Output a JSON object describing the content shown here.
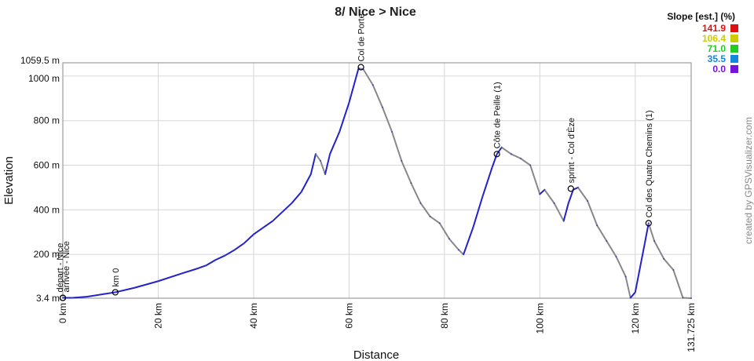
{
  "chart_data": {
    "type": "line",
    "title": "8/ Nice > Nice",
    "xlabel": "Distance",
    "ylabel": "Elevation",
    "xlim": [
      0,
      131.725
    ],
    "ylim": [
      3.4,
      1059.5
    ],
    "x_ticks": [
      {
        "value": 0,
        "label": "0 km"
      },
      {
        "value": 20,
        "label": "20 km"
      },
      {
        "value": 40,
        "label": "40 km"
      },
      {
        "value": 60,
        "label": "60 km"
      },
      {
        "value": 80,
        "label": "80 km"
      },
      {
        "value": 100,
        "label": "100 km"
      },
      {
        "value": 120,
        "label": "120 km"
      },
      {
        "value": 131.725,
        "label": "131.725 km"
      }
    ],
    "y_ticks": [
      {
        "value": 3.4,
        "label": "3.4 m"
      },
      {
        "value": 200,
        "label": "200 m"
      },
      {
        "value": 400,
        "label": "400 m"
      },
      {
        "value": 600,
        "label": "600 m"
      },
      {
        "value": 800,
        "label": "800 m"
      },
      {
        "value": 1000,
        "label": "1000 m"
      },
      {
        "value": 1059.5,
        "label": "1059.5 m"
      }
    ],
    "grid": true,
    "series": [
      {
        "x": [
          0,
          2,
          5,
          8,
          11,
          15,
          20,
          25,
          28,
          30,
          32,
          34,
          36,
          38,
          40,
          42,
          44,
          46,
          48,
          50,
          52,
          53,
          54,
          55,
          56,
          58,
          60,
          62,
          63,
          65,
          67,
          69,
          71,
          73,
          75,
          77,
          79,
          81,
          83,
          84,
          86,
          88,
          90,
          91,
          92,
          94,
          96,
          98,
          100,
          101,
          103,
          105,
          106,
          107,
          108,
          110,
          112,
          114,
          116,
          118,
          119,
          120,
          122,
          122.8,
          124,
          126,
          128,
          130,
          131.725
        ],
        "y": [
          5,
          5,
          10,
          20,
          30,
          50,
          80,
          115,
          135,
          150,
          175,
          195,
          220,
          250,
          290,
          320,
          350,
          390,
          430,
          480,
          560,
          650,
          620,
          560,
          650,
          750,
          880,
          1035,
          1030,
          960,
          860,
          750,
          620,
          520,
          430,
          370,
          340,
          270,
          220,
          200,
          320,
          460,
          590,
          650,
          680,
          650,
          630,
          600,
          470,
          490,
          430,
          350,
          430,
          490,
          500,
          440,
          330,
          260,
          190,
          100,
          5,
          30,
          250,
          340,
          260,
          180,
          130,
          5,
          3.4
        ]
      }
    ],
    "waypoints": [
      {
        "x": 0,
        "y": 5,
        "label": "arrivée - Nice"
      },
      {
        "x": 0,
        "y": 5,
        "label": "départ - Nice"
      },
      {
        "x": 11,
        "y": 30,
        "label": "km 0"
      },
      {
        "x": 62.5,
        "y": 1040,
        "label": "Col de Porte"
      },
      {
        "x": 91,
        "y": 650,
        "label": "Côte de Peille (1)"
      },
      {
        "x": 106.5,
        "y": 495,
        "label": "sprint - Col d'Èze"
      },
      {
        "x": 122.8,
        "y": 340,
        "label": "Col des Quatre Chemins (1)"
      }
    ],
    "legend": {
      "title": "Slope [est.] (%)",
      "placement": "top-right",
      "items": [
        {
          "label": "141.9",
          "color": "#dd1111"
        },
        {
          "label": "106.4",
          "color": "#cccc00"
        },
        {
          "label": "71.0",
          "color": "#22cc22"
        },
        {
          "label": "35.5",
          "color": "#1188dd"
        },
        {
          "label": "0.0",
          "color": "#7711dd"
        }
      ]
    },
    "line_colors": {
      "climb": "#2222cc",
      "descent": "#888888"
    }
  },
  "credit": "created by GPSVisualizer.com"
}
